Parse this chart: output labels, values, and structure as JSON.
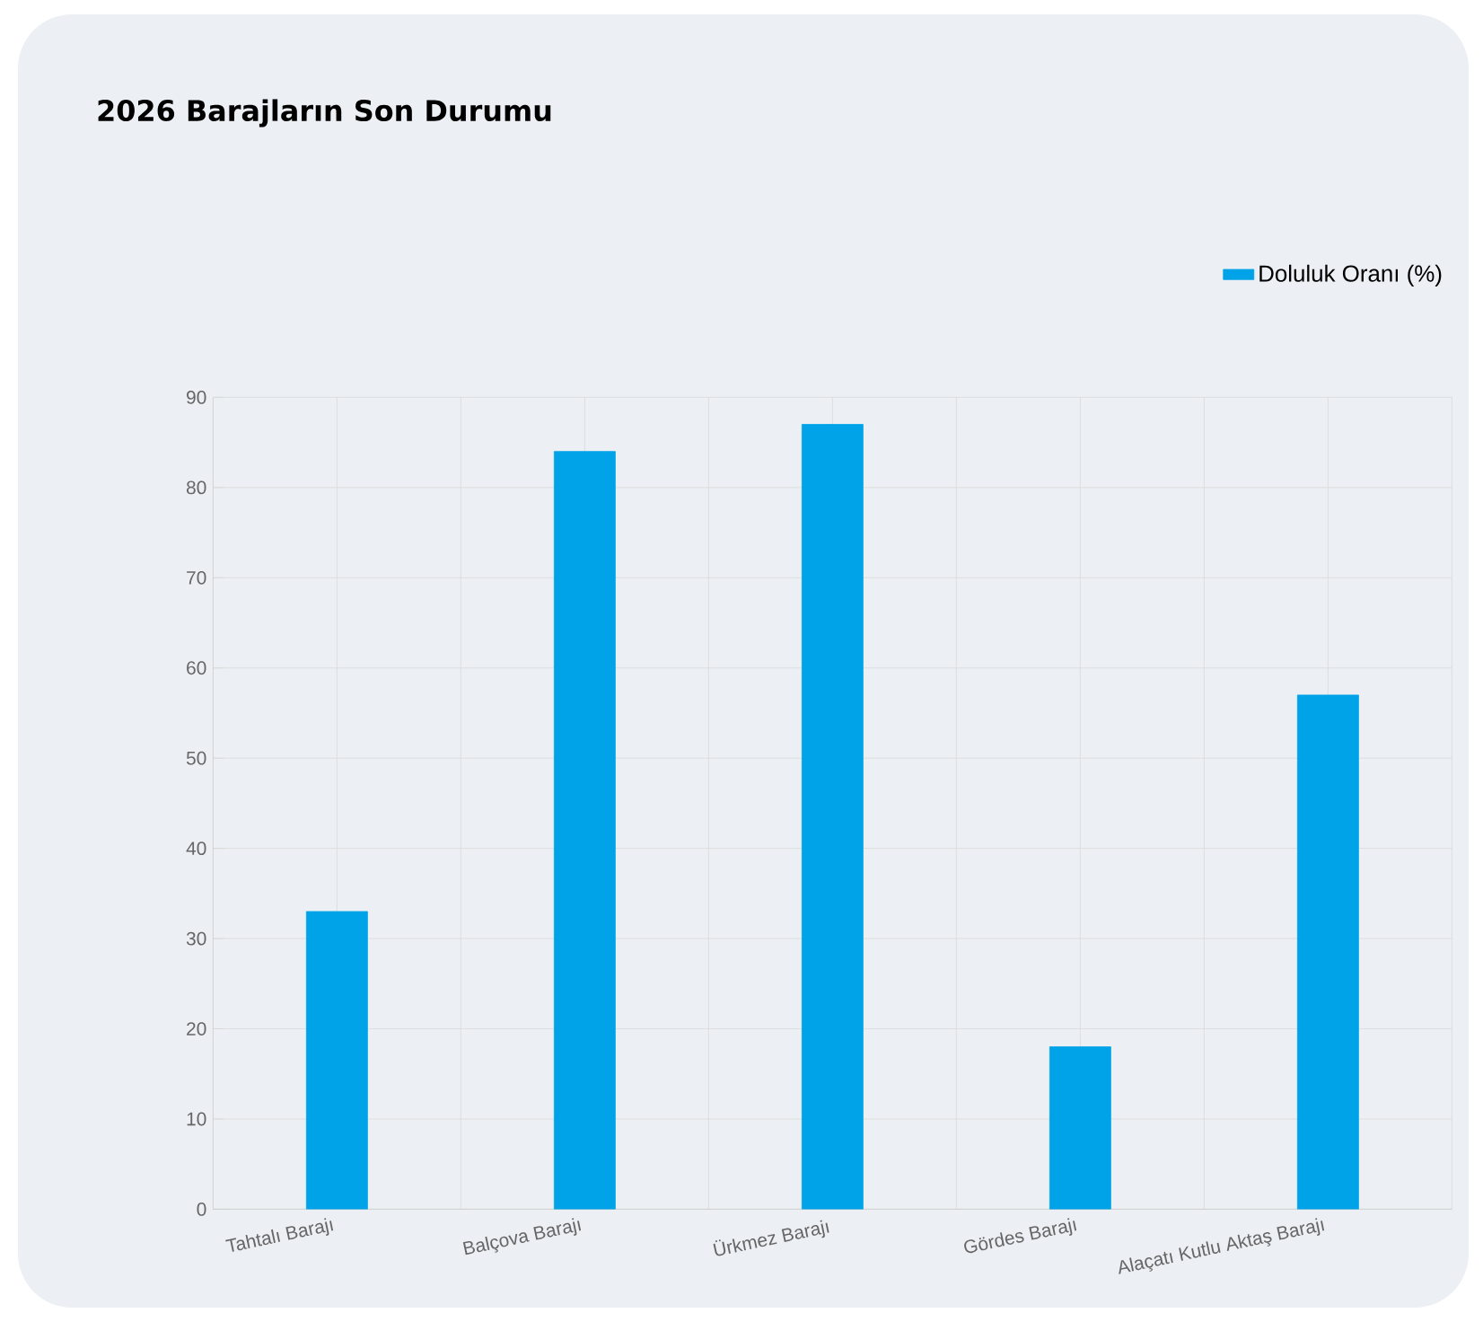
{
  "chart_data": {
    "type": "bar",
    "title": "2026 Barajların Son Durumu",
    "categories": [
      "Tahtalı Barajı",
      "Balçova Barajı",
      "Ürkmez Barajı",
      "Gördes Barajı",
      "Alaçatı Kutlu Aktaş Barajı"
    ],
    "series": [
      {
        "name": "Doluluk Oranı (%)",
        "color": "#00a3e8",
        "values": [
          33,
          84,
          87,
          18,
          57
        ]
      }
    ],
    "ylim": [
      0,
      90
    ],
    "yticks": [
      0,
      10,
      20,
      30,
      40,
      50,
      60,
      70,
      80,
      90
    ],
    "grid": true,
    "legend": "top right"
  }
}
